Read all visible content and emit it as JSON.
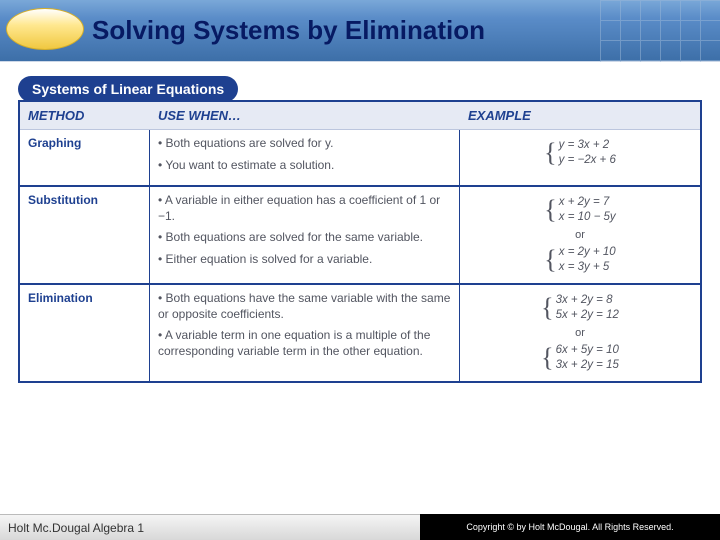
{
  "header": {
    "title": "Solving Systems by Elimination",
    "title_color": "#071a63",
    "bg_gradient": [
      "#7aa8d8",
      "#5a8cc8",
      "#3d6fa8"
    ]
  },
  "systems_title": "Systems of Linear Equations",
  "columns": {
    "method": "METHOD",
    "use": "USE WHEN…",
    "example": "EXAMPLE"
  },
  "rows": [
    {
      "method": "Graphing",
      "uses": [
        "• Both equations are solved for y.",
        "• You want to estimate a solution."
      ],
      "examples": [
        {
          "eq1": "y = 3x + 2",
          "eq2": "y = −2x + 6"
        }
      ]
    },
    {
      "method": "Substitution",
      "uses": [
        "• A variable in either equation has a coefficient of 1 or −1.",
        "• Both equations are solved for the same variable.",
        "• Either equation is solved for a variable."
      ],
      "examples": [
        {
          "eq1": "x + 2y = 7",
          "eq2": "x = 10 − 5y"
        },
        {
          "eq1": "x = 2y + 10",
          "eq2": "x = 3y + 5"
        }
      ]
    },
    {
      "method": "Elimination",
      "uses": [
        "• Both equations have the same variable with the same or opposite coefficients.",
        "• A variable term in one equation is a multiple of the corresponding variable term in the other equation."
      ],
      "examples": [
        {
          "eq1": "3x + 2y = 8",
          "eq2": "5x + 2y = 12"
        },
        {
          "eq1": "6x + 5y = 10",
          "eq2": "3x + 2y = 15"
        }
      ]
    }
  ],
  "or_label": "or",
  "footer": {
    "left": "Holt Mc.Dougal Algebra 1",
    "right": "Copyright © by Holt McDougal. All Rights Reserved."
  },
  "colors": {
    "brand_blue": "#1e4090",
    "header_bg": "#e6eaf4",
    "text_gray": "#525560"
  }
}
